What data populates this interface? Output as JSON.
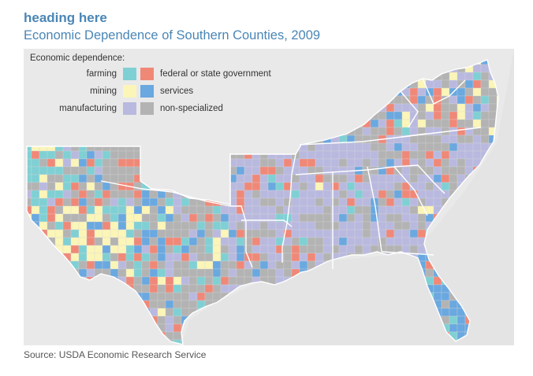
{
  "header": {
    "heading": "heading here",
    "title": "Economic Dependence of Southern Counties, 2009"
  },
  "legend": {
    "title": "Economic dependence:",
    "items": [
      {
        "label": "farming",
        "color": "#7fd0d4"
      },
      {
        "label": "federal or state government",
        "color": "#f08878"
      },
      {
        "label": "mining",
        "color": "#fbf5b8"
      },
      {
        "label": "services",
        "color": "#6aa8e0"
      },
      {
        "label": "manufacturing",
        "color": "#b9b9e0"
      },
      {
        "label": "non-specialized",
        "color": "#b3b3b3"
      }
    ]
  },
  "colors": {
    "ocean": "#e4e4e4",
    "land_outside": "#e8e8e8",
    "state_border": "#ffffff",
    "title_blue": "#4a86b6"
  },
  "footer": {
    "source": "Source: USDA Economic Research Service"
  }
}
